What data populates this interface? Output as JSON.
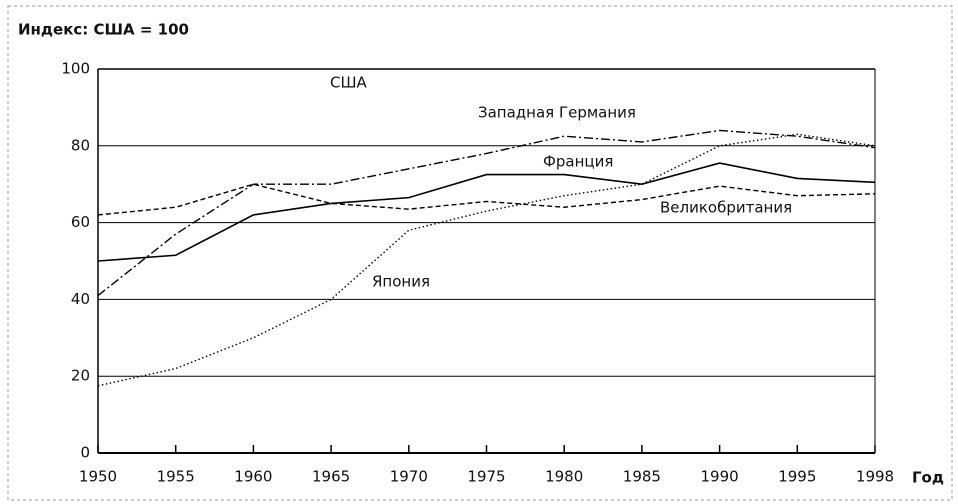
{
  "chart_data": {
    "type": "line",
    "title": "Индекс: США = 100",
    "xlabel": "Год",
    "categories": [
      "1950",
      "1955",
      "1960",
      "1965",
      "1970",
      "1975",
      "1980",
      "1985",
      "1990",
      "1995",
      "1998"
    ],
    "ylim": [
      0,
      100
    ],
    "yticks": [
      0,
      20,
      40,
      60,
      80,
      100
    ],
    "grid": true,
    "series": [
      {
        "name": "США",
        "color": "#000000",
        "style": "solid",
        "values": [
          100,
          100,
          100,
          100,
          100,
          100,
          100,
          100,
          100,
          100,
          100
        ]
      },
      {
        "name": "Западная Германия",
        "color": "#000000",
        "style": "dashdot",
        "values": [
          41,
          57,
          70,
          70,
          74,
          78,
          82.5,
          81,
          84,
          82.5,
          79.5
        ]
      },
      {
        "name": "Франция",
        "color": "#000000",
        "style": "solid",
        "values": [
          50,
          51.5,
          62,
          65,
          66.5,
          72.5,
          72.5,
          70,
          75.5,
          71.5,
          70.5
        ]
      },
      {
        "name": "Великобритания",
        "color": "#000000",
        "style": "dashed",
        "values": [
          62,
          64,
          70,
          65,
          63.5,
          65.5,
          64,
          66,
          69.5,
          67,
          67.5
        ]
      },
      {
        "name": "Япония",
        "color": "#000000",
        "style": "dotted",
        "values": [
          17.5,
          22,
          30,
          40,
          58,
          63,
          67,
          70,
          80,
          83,
          80
        ]
      }
    ]
  }
}
